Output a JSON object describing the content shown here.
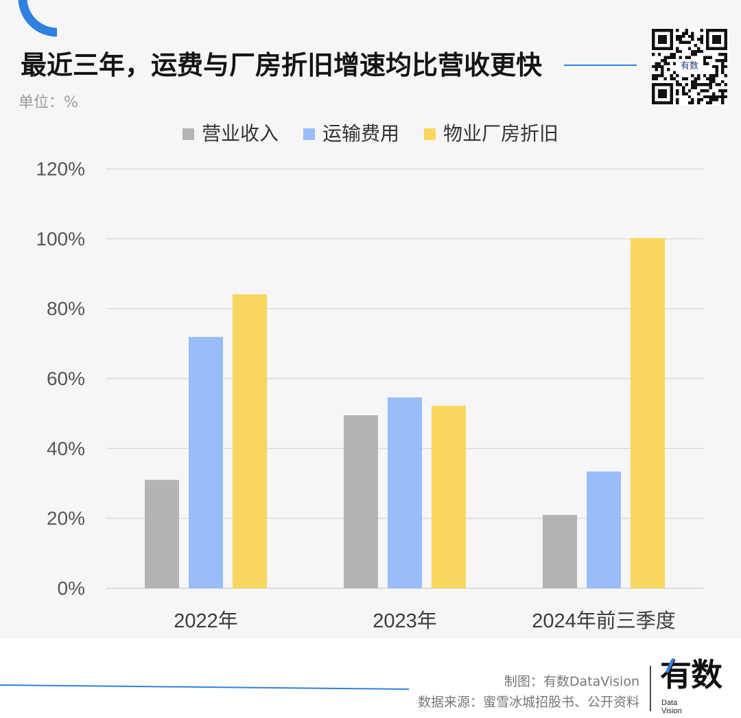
{
  "chart_data": {
    "type": "bar",
    "title": "最近三年，运费与厂房折旧增速均比营收更快",
    "unit_label": "单位：%",
    "categories": [
      "2022年",
      "2023年",
      "2024年前三季度"
    ],
    "series": [
      {
        "name": "营业收入",
        "values": [
          31.0,
          49.5,
          21.0
        ],
        "color": "#b4b4b4"
      },
      {
        "name": "运输费用",
        "values": [
          71.9,
          54.6,
          33.4
        ],
        "color": "#99bcfa"
      },
      {
        "name": "物业厂房折旧",
        "values": [
          84.1,
          52.2,
          100.2
        ],
        "color": "#f9d65d"
      }
    ],
    "ylim": [
      0,
      120
    ],
    "yticks": [
      0,
      20,
      40,
      60,
      80,
      100,
      120
    ],
    "ytick_labels": [
      "0%",
      "20%",
      "40%",
      "60%",
      "80%",
      "100%",
      "120%"
    ],
    "grid": true,
    "legend_position": "top"
  },
  "qr_center_label": "有数",
  "footer": {
    "credit": "制图：有数DataVision",
    "source": "数据来源：蜜雪冰城招股书、公开资料",
    "logo": {
      "main": "有数",
      "sub_line1": "Data",
      "sub_line2": "Vision"
    }
  },
  "colors": {
    "accent": "#2f80e0",
    "chart_background": "#f6f6f6",
    "gridline": "#dadada"
  }
}
